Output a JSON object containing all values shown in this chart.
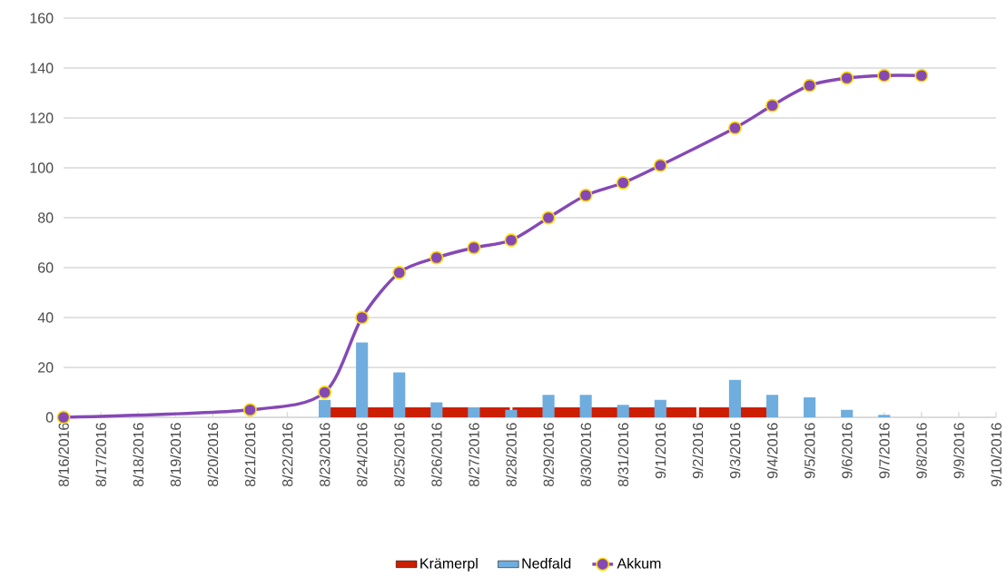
{
  "chart_data": {
    "type": "bar",
    "categories": [
      "8/16/2016",
      "8/17/2016",
      "8/18/2016",
      "8/19/2016",
      "8/20/2016",
      "8/21/2016",
      "8/22/2016",
      "8/23/2016",
      "8/24/2016",
      "8/25/2016",
      "8/26/2016",
      "8/27/2016",
      "8/28/2016",
      "8/29/2016",
      "8/30/2016",
      "8/31/2016",
      "9/1/2016",
      "9/2/2016",
      "9/3/2016",
      "9/4/2016",
      "9/5/2016",
      "9/6/2016",
      "9/7/2016",
      "9/8/2016",
      "9/9/2016",
      "9/10/2016"
    ],
    "series": [
      {
        "name": "Krämerpl",
        "color": "#cc1e00",
        "values": [
          null,
          null,
          null,
          null,
          null,
          null,
          null,
          4,
          4,
          4,
          4,
          4,
          4,
          4,
          4,
          4,
          4,
          4,
          4,
          null,
          null,
          null,
          null,
          null,
          null,
          null
        ]
      },
      {
        "name": "Nedfald",
        "color": "#6fadde",
        "values": [
          null,
          null,
          null,
          null,
          null,
          null,
          null,
          7,
          30,
          18,
          6,
          4,
          3,
          9,
          9,
          5,
          7,
          null,
          15,
          9,
          8,
          3,
          1,
          null,
          null,
          null
        ]
      },
      {
        "name": "Akkum",
        "type": "line",
        "color": "#8549b5",
        "marker": "circle",
        "line_style": "solid",
        "values": [
          0,
          null,
          null,
          null,
          null,
          3,
          null,
          10,
          40,
          58,
          64,
          68,
          71,
          80,
          89,
          94,
          101,
          null,
          116,
          125,
          133,
          136,
          137,
          137,
          null,
          null
        ]
      }
    ],
    "ylim": [
      0,
      160
    ],
    "yticks": [
      0,
      20,
      40,
      60,
      80,
      100,
      120,
      140,
      160
    ],
    "grid": "y",
    "legend": "bottom"
  }
}
